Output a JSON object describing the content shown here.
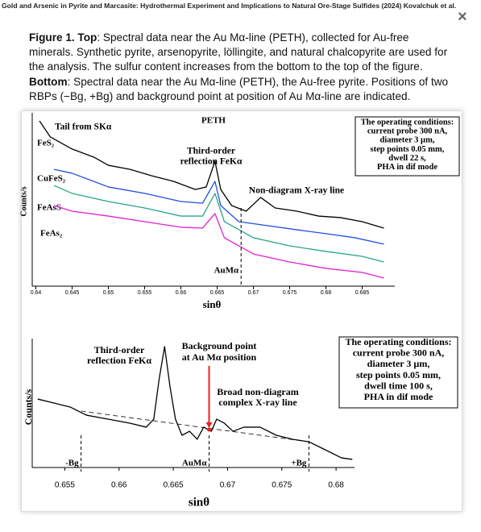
{
  "header": {
    "title": "Gold and Arsenic in Pyrite and Marcasite: Hydrothermal Experiment and Implications to Natural Ore-Stage Sulfides (2024) Kovalchuk et al.",
    "close": "×"
  },
  "caption": [
    {
      "text": "Figure 1. Top",
      "bold": true
    },
    {
      "text": ": Spectral data near the Au Mα-line (PETH), collected for Au-free minerals. Synthetic pyrite, arsenopyrite, löllingite, and natural chalcopyrite are used for the analysis. The sulfur content increases from the bottom to the top of the figure. ",
      "bold": false
    },
    {
      "text": "Bottom",
      "bold": true
    },
    {
      "text": ": Spectral data near the Au Mα-line (PETH), the Au-free pyrite. Positions of two RBPs (−Bg, +Bg) and background point at position of Au Mα-line are indicated.",
      "bold": false
    }
  ],
  "chart_data": [
    {
      "type": "line",
      "title": "PETH",
      "xlabel": "sinθ",
      "ylabel": "Counts/s",
      "xlim": [
        0.6395,
        0.6895
      ],
      "ylim": [
        0,
        100
      ],
      "xticks": [
        0.64,
        0.645,
        0.65,
        0.655,
        0.66,
        0.665,
        0.67,
        0.675,
        0.68,
        0.685
      ],
      "series": [
        {
          "name": "FeS₂",
          "color": "#000000",
          "x": [
            0.6405,
            0.642,
            0.645,
            0.648,
            0.65,
            0.653,
            0.656,
            0.659,
            0.662,
            0.6635,
            0.6647,
            0.6655,
            0.667,
            0.669,
            0.671,
            0.673,
            0.676,
            0.679,
            0.682,
            0.685,
            0.688
          ],
          "values": [
            97.6,
            88.1,
            81.0,
            76.2,
            71.4,
            69.0,
            65.2,
            61.9,
            57.1,
            58.6,
            73.8,
            57.1,
            47.6,
            44.3,
            52.4,
            46.2,
            44.3,
            41.4,
            40.5,
            38.1,
            34.3
          ]
        },
        {
          "name": "CuFeS₂",
          "color": "#1f4fe0",
          "x": [
            0.6425,
            0.645,
            0.65,
            0.655,
            0.66,
            0.663,
            0.6647,
            0.6655,
            0.668,
            0.672,
            0.676,
            0.68,
            0.684,
            0.688
          ],
          "values": [
            69.0,
            66.7,
            58.6,
            54.8,
            50.0,
            49.0,
            61.9,
            47.6,
            38.1,
            35.7,
            33.3,
            31.0,
            28.6,
            24.8
          ]
        },
        {
          "name": "FeAsS",
          "color": "#2aa58a",
          "x": [
            0.6425,
            0.645,
            0.65,
            0.655,
            0.66,
            0.663,
            0.6647,
            0.666,
            0.67,
            0.675,
            0.68,
            0.685,
            0.688
          ],
          "values": [
            59.5,
            54.8,
            50.0,
            46.2,
            41.4,
            41.4,
            54.8,
            38.1,
            28.6,
            23.8,
            20.5,
            17.6,
            14.3
          ]
        },
        {
          "name": "FeAs₂",
          "color": "#e020d0",
          "x": [
            0.6425,
            0.645,
            0.65,
            0.655,
            0.66,
            0.663,
            0.6647,
            0.666,
            0.67,
            0.675,
            0.68,
            0.685,
            0.688
          ],
          "values": [
            47.6,
            44.3,
            41.4,
            38.1,
            34.8,
            34.3,
            42.9,
            28.6,
            19.0,
            14.3,
            10.5,
            8.1,
            4.8
          ]
        }
      ],
      "annotations": [
        {
          "lines": [
            "Tail from SKα"
          ]
        },
        {
          "lines": [
            "Third-order",
            "reflection FeKα"
          ]
        },
        {
          "lines": [
            "Non-diagram X-ray line"
          ]
        }
      ],
      "markers": [
        {
          "label": "AuMα",
          "x": 0.6683
        }
      ],
      "box": [
        "The operating conditions:",
        "current probe 300 nA,",
        "diameter 3 µm,",
        "step points 0.05 mm,",
        "dwell 22 s,",
        "PHA in dif mode"
      ]
    },
    {
      "type": "line",
      "xlabel": "sinθ",
      "ylabel": "Counts/s",
      "xlim": [
        0.652,
        0.6817
      ],
      "ylim": [
        0,
        100
      ],
      "xticks": [
        0.655,
        0.66,
        0.665,
        0.67,
        0.675,
        0.68
      ],
      "series": [
        {
          "color": "#000000",
          "x": [
            0.6525,
            0.654,
            0.6555,
            0.657,
            0.659,
            0.661,
            0.6625,
            0.6632,
            0.6637,
            0.6642,
            0.6647,
            0.6652,
            0.6658,
            0.6665,
            0.6672,
            0.6678,
            0.6685,
            0.669,
            0.6697,
            0.6705,
            0.6715,
            0.673,
            0.6745,
            0.676,
            0.6775,
            0.679,
            0.6805,
            0.6815
          ],
          "values": [
            54.8,
            51.6,
            48.4,
            41.9,
            38.7,
            35.5,
            32.3,
            38.7,
            71.0,
            96.8,
            64.5,
            38.7,
            25.8,
            29.0,
            22.6,
            32.3,
            29.0,
            38.7,
            35.5,
            29.0,
            32.3,
            32.3,
            25.8,
            22.6,
            20.6,
            14.2,
            7.7,
            6.5
          ]
        }
      ],
      "annotations": [
        {
          "lines": [
            "Third-order",
            "reflection FeKα"
          ]
        },
        {
          "lines": [
            "Broad non-diagram",
            "complex X-ray line"
          ]
        }
      ],
      "markers": [
        {
          "label": "-Bg",
          "x": 0.6565
        },
        {
          "label": "AuMα",
          "x": 0.6683
        },
        {
          "label": "+Bg",
          "x": 0.6775
        }
      ],
      "background": {
        "x": [
          0.6565,
          0.6775
        ],
        "values": [
          45.2,
          20.6
        ]
      },
      "background_point": {
        "lines": [
          "Background point",
          "at Au Mα position"
        ],
        "x": 0.6683,
        "value": 30.3,
        "color": "#e8211c"
      },
      "box": [
        "The operating conditions:",
        "current probe 300 nA,",
        "diameter 3 µm,",
        "step points 0.05 mm,",
        "dwell time 100 s,",
        "PHA in dif mode"
      ]
    }
  ]
}
